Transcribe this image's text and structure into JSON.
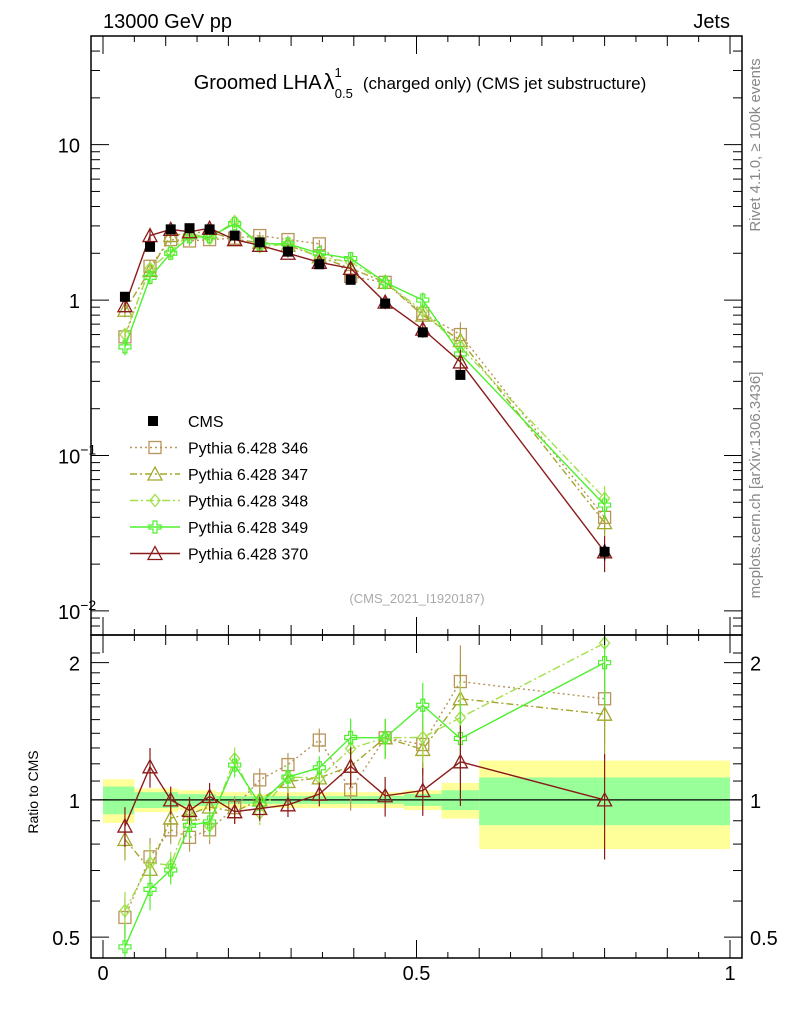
{
  "header": {
    "left": "13000 GeV pp",
    "right": "Jets"
  },
  "side_labels": {
    "rivet": "Rivet 4.1.0, ≥ 100k events",
    "site": "mcplots.cern.ch [arXiv:1306.3436]"
  },
  "chart_data": {
    "type": "line",
    "title_main": "Groomed LHA",
    "title_symbol": "λ",
    "title_sup": "1",
    "title_sub": "0.5",
    "title_rest": "(charged only) (CMS jet substructure)",
    "watermark": "(CMS_2021_I1920187)",
    "ratio_ylabel": "Ratio to CMS",
    "xlim": [
      0,
      1
    ],
    "ylim_main": [
      0.007,
      50
    ],
    "ylim_ratio": [
      0.45,
      2.3
    ],
    "main_ticks": [
      {
        "v": 10,
        "base": "10",
        "exp": ""
      },
      {
        "v": 1,
        "base": "1",
        "exp": ""
      },
      {
        "v": 0.1,
        "base": "10",
        "exp": "−1"
      },
      {
        "v": 0.01,
        "base": "10",
        "exp": "−2"
      }
    ],
    "ratio_ticks": [
      {
        "v": 2,
        "label": "2"
      },
      {
        "v": 1,
        "label": "1"
      },
      {
        "v": 0.5,
        "label": "0.5"
      }
    ],
    "x_ticks": [
      {
        "v": 0,
        "label": "0"
      },
      {
        "v": 0.5,
        "label": "0.5"
      },
      {
        "v": 1,
        "label": "1"
      }
    ],
    "bins": [
      [
        0,
        0.05
      ],
      [
        0.05,
        0.1
      ],
      [
        0.1,
        0.12
      ],
      [
        0.12,
        0.15
      ],
      [
        0.15,
        0.18
      ],
      [
        0.18,
        0.23
      ],
      [
        0.23,
        0.27
      ],
      [
        0.27,
        0.31
      ],
      [
        0.31,
        0.37
      ],
      [
        0.37,
        0.42
      ],
      [
        0.42,
        0.48
      ],
      [
        0.48,
        0.54
      ],
      [
        0.54,
        0.6
      ],
      [
        0.6,
        1.0
      ]
    ],
    "x": [
      0.035,
      0.075,
      0.108,
      0.138,
      0.17,
      0.21,
      0.25,
      0.295,
      0.345,
      0.395,
      0.45,
      0.51,
      0.57,
      0.8
    ],
    "cms": {
      "name": "CMS",
      "values": [
        1.05,
        2.2,
        2.85,
        2.9,
        2.85,
        2.6,
        2.35,
        2.05,
        1.7,
        1.35,
        0.95,
        0.62,
        0.33,
        0.024
      ],
      "band_inner": [
        0.07,
        0.04,
        0.04,
        0.03,
        0.03,
        0.02,
        0.02,
        0.02,
        0.02,
        0.02,
        0.02,
        0.03,
        0.05,
        0.12
      ],
      "band_outer": [
        0.11,
        0.06,
        0.06,
        0.05,
        0.05,
        0.04,
        0.03,
        0.04,
        0.04,
        0.04,
        0.04,
        0.05,
        0.09,
        0.22
      ]
    },
    "series": [
      {
        "name": "Pythia 6.428 346",
        "color": "#b8955a",
        "marker": "square",
        "dash": "2,3",
        "values": [
          0.58,
          1.65,
          2.45,
          2.4,
          2.45,
          2.5,
          2.6,
          2.45,
          2.3,
          1.42,
          1.3,
          0.82,
          0.6,
          0.04
        ],
        "ratio_err": [
          0.1,
          0.1,
          0.07,
          0.07,
          0.07,
          0.06,
          0.06,
          0.06,
          0.06,
          0.1,
          0.1,
          0.12,
          0.2,
          0.2
        ]
      },
      {
        "name": "Pythia 6.428 347",
        "color": "#a3a72d",
        "marker": "triangle",
        "dash": "7,3,2,3",
        "values": [
          0.86,
          1.55,
          2.6,
          2.7,
          2.75,
          2.45,
          2.35,
          2.25,
          1.9,
          1.6,
          1.3,
          0.8,
          0.55,
          0.037
        ],
        "ratio_err": [
          0.1,
          0.1,
          0.07,
          0.07,
          0.07,
          0.06,
          0.06,
          0.06,
          0.06,
          0.1,
          0.1,
          0.12,
          0.2,
          0.2
        ]
      },
      {
        "name": "Pythia 6.428 348",
        "color": "#a2e04a",
        "marker": "diamond",
        "dash": "8,3,2,3",
        "values": [
          0.6,
          1.6,
          2.05,
          2.7,
          2.5,
          3.2,
          2.2,
          2.3,
          1.9,
          1.75,
          1.3,
          0.85,
          0.5,
          0.053
        ],
        "ratio_err": [
          0.1,
          0.1,
          0.07,
          0.07,
          0.07,
          0.06,
          0.06,
          0.06,
          0.06,
          0.1,
          0.1,
          0.12,
          0.2,
          0.2
        ]
      },
      {
        "name": "Pythia 6.428 349",
        "color": "#4ef02e",
        "marker": "cross",
        "dash": "",
        "values": [
          0.5,
          1.4,
          2.0,
          2.55,
          2.55,
          3.1,
          2.3,
          2.3,
          2.0,
          1.85,
          1.3,
          1.0,
          0.45,
          0.048
        ],
        "ratio_err": [
          0.12,
          0.1,
          0.07,
          0.07,
          0.07,
          0.06,
          0.06,
          0.06,
          0.06,
          0.1,
          0.1,
          0.12,
          0.2,
          0.2
        ]
      },
      {
        "name": "Pythia 6.428 370",
        "color": "#8b1a1a",
        "marker": "triangle",
        "dash": "",
        "values": [
          0.92,
          2.6,
          2.85,
          2.75,
          2.9,
          2.45,
          2.25,
          2.0,
          1.75,
          1.6,
          0.97,
          0.65,
          0.4,
          0.024
        ],
        "ratio_err": [
          0.1,
          0.1,
          0.07,
          0.07,
          0.07,
          0.06,
          0.06,
          0.06,
          0.06,
          0.1,
          0.1,
          0.12,
          0.2,
          0.26
        ]
      }
    ]
  }
}
